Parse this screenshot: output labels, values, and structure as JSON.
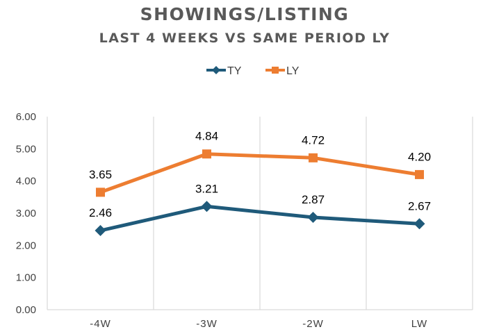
{
  "chart_data": {
    "type": "line",
    "title": "SHOWINGS/LISTING",
    "subtitle": "LAST 4 WEEKS VS SAME PERIOD LY",
    "categories": [
      "-4W",
      "-3W",
      "-2W",
      "LW"
    ],
    "series": [
      {
        "name": "TY",
        "values": [
          2.46,
          3.21,
          2.87,
          2.67
        ],
        "labels": [
          "2.46",
          "3.21",
          "2.87",
          "2.67"
        ],
        "color": "#1f5a7a",
        "marker": "diamond"
      },
      {
        "name": "LY",
        "values": [
          3.65,
          4.84,
          4.72,
          4.2
        ],
        "labels": [
          "3.65",
          "4.84",
          "4.72",
          "4.20"
        ],
        "color": "#ed7d31",
        "marker": "square"
      }
    ],
    "ylim": [
      0,
      6
    ],
    "yticks": [
      "0.00",
      "1.00",
      "2.00",
      "3.00",
      "4.00",
      "5.00",
      "6.00"
    ],
    "xlabel": "",
    "ylabel": "",
    "grid": "vertical",
    "legend": "top-center"
  }
}
